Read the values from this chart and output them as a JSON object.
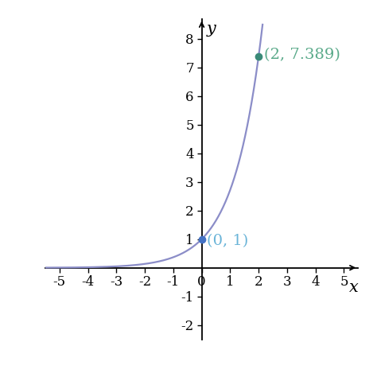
{
  "curve_color": "#8B8DC8",
  "point1": [
    0,
    1
  ],
  "point1_color": "#4472C4",
  "point1_label": "(0, 1)",
  "point1_label_color": "#6ab4d8",
  "point2": [
    2,
    7.389
  ],
  "point2_color": "#3a8a78",
  "point2_label": "(2, 7.389)",
  "point2_label_color": "#5aaa8a",
  "xlim": [
    -5.5,
    5.5
  ],
  "ylim": [
    -2.5,
    8.7
  ],
  "xticks": [
    -5,
    -4,
    -3,
    -2,
    -1,
    0,
    1,
    2,
    3,
    4,
    5
  ],
  "yticks": [
    -2,
    -1,
    1,
    2,
    3,
    4,
    5,
    6,
    7,
    8
  ],
  "xlabel": "x",
  "ylabel": "y",
  "background_color": "#ffffff",
  "axis_color": "#000000",
  "tick_label_fontsize": 12,
  "axis_label_fontsize": 15,
  "annotation_fontsize": 14,
  "curve_linewidth": 1.6,
  "point_markersize": 6
}
